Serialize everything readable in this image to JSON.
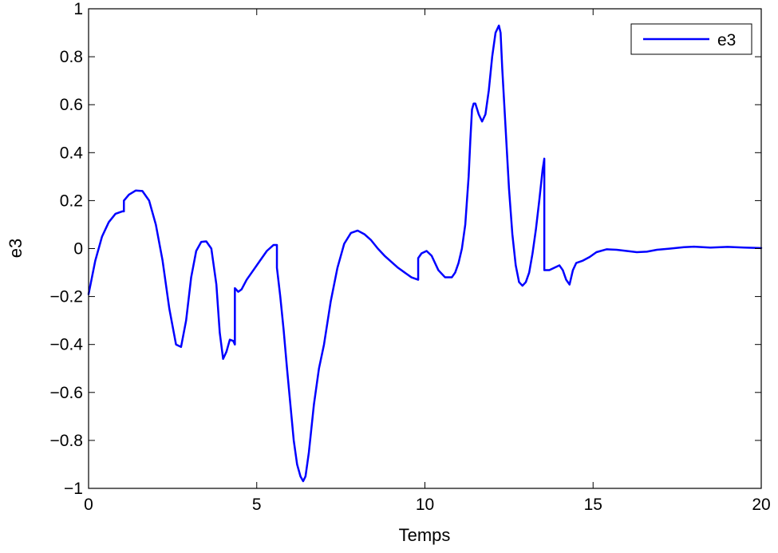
{
  "chart_data": {
    "type": "line",
    "title": "",
    "xlabel": "Temps",
    "ylabel": "e3",
    "xlim": [
      0,
      20
    ],
    "ylim": [
      -1,
      1
    ],
    "xticks": [
      0,
      5,
      10,
      15,
      20
    ],
    "yticks": [
      -1,
      -0.8,
      -0.6,
      -0.4,
      -0.2,
      0,
      0.2,
      0.4,
      0.6,
      0.8,
      1
    ],
    "xtick_labels": [
      "0",
      "5",
      "10",
      "15",
      "20"
    ],
    "ytick_labels": [
      "−1",
      "−0.8",
      "−0.6",
      "−0.4",
      "−0.2",
      "0",
      "0.2",
      "0.4",
      "0.6",
      "0.8",
      "1"
    ],
    "grid": false,
    "legend_position": "top-right",
    "series": [
      {
        "name": "e3",
        "color": "#0000ff",
        "x": [
          0,
          0.2,
          0.4,
          0.6,
          0.8,
          1.0,
          1.05,
          1.05,
          1.2,
          1.4,
          1.6,
          1.8,
          2.0,
          2.2,
          2.4,
          2.6,
          2.75,
          2.9,
          3.05,
          3.2,
          3.35,
          3.5,
          3.65,
          3.8,
          3.9,
          4.0,
          4.1,
          4.2,
          4.3,
          4.35,
          4.35,
          4.45,
          4.55,
          4.7,
          4.9,
          5.1,
          5.3,
          5.5,
          5.6,
          5.6,
          5.7,
          5.8,
          5.9,
          6.0,
          6.1,
          6.2,
          6.3,
          6.38,
          6.45,
          6.55,
          6.7,
          6.85,
          7.0,
          7.2,
          7.4,
          7.6,
          7.8,
          8.0,
          8.2,
          8.4,
          8.6,
          8.8,
          9.0,
          9.2,
          9.4,
          9.6,
          9.8,
          9.8,
          9.9,
          10.05,
          10.2,
          10.4,
          10.6,
          10.8,
          10.9,
          11.0,
          11.1,
          11.2,
          11.3,
          11.35,
          11.4,
          11.45,
          11.5,
          11.6,
          11.7,
          11.8,
          11.9,
          12.0,
          12.1,
          12.2,
          12.25,
          12.3,
          12.4,
          12.5,
          12.6,
          12.7,
          12.8,
          12.9,
          13.0,
          13.1,
          13.2,
          13.3,
          13.4,
          13.5,
          13.55,
          13.55,
          13.7,
          13.85,
          14.0,
          14.1,
          14.2,
          14.3,
          14.4,
          14.5,
          14.7,
          14.9,
          15.1,
          15.4,
          15.7,
          16.0,
          16.3,
          16.6,
          16.9,
          17.3,
          17.7,
          18.0,
          18.5,
          19.0,
          19.5,
          20.0
        ],
        "values": [
          -0.19,
          -0.05,
          0.05,
          0.11,
          0.145,
          0.155,
          0.155,
          0.2,
          0.225,
          0.242,
          0.24,
          0.2,
          0.1,
          -0.05,
          -0.25,
          -0.4,
          -0.41,
          -0.3,
          -0.12,
          -0.01,
          0.028,
          0.03,
          0.0,
          -0.15,
          -0.35,
          -0.46,
          -0.43,
          -0.38,
          -0.385,
          -0.4,
          -0.165,
          -0.18,
          -0.17,
          -0.13,
          -0.09,
          -0.05,
          -0.01,
          0.015,
          0.015,
          -0.08,
          -0.2,
          -0.34,
          -0.5,
          -0.65,
          -0.8,
          -0.9,
          -0.95,
          -0.97,
          -0.95,
          -0.85,
          -0.65,
          -0.5,
          -0.4,
          -0.22,
          -0.08,
          0.02,
          0.065,
          0.075,
          0.06,
          0.035,
          0.0,
          -0.03,
          -0.055,
          -0.08,
          -0.1,
          -0.12,
          -0.13,
          -0.04,
          -0.02,
          -0.01,
          -0.03,
          -0.09,
          -0.12,
          -0.12,
          -0.1,
          -0.06,
          0.0,
          0.1,
          0.3,
          0.45,
          0.58,
          0.605,
          0.605,
          0.56,
          0.53,
          0.56,
          0.66,
          0.8,
          0.9,
          0.93,
          0.9,
          0.75,
          0.5,
          0.25,
          0.06,
          -0.07,
          -0.14,
          -0.155,
          -0.14,
          -0.1,
          -0.02,
          0.08,
          0.2,
          0.33,
          0.375,
          -0.09,
          -0.09,
          -0.08,
          -0.07,
          -0.09,
          -0.13,
          -0.15,
          -0.09,
          -0.06,
          -0.05,
          -0.035,
          -0.015,
          -0.003,
          -0.005,
          -0.01,
          -0.015,
          -0.013,
          -0.005,
          0.0,
          0.006,
          0.008,
          0.004,
          0.007,
          0.004,
          0.002
        ]
      }
    ]
  }
}
